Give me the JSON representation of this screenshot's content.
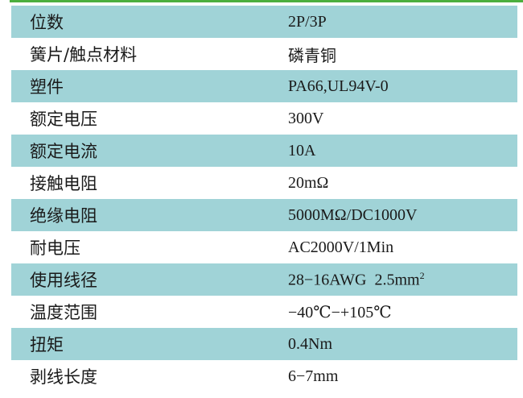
{
  "colors": {
    "accent_line": "#4caf3e",
    "row_shade": "#a0d3d7"
  },
  "rows": [
    {
      "label": "位数",
      "value": "2P/3P"
    },
    {
      "label": "簧片/触点材料",
      "value": "磷青铜"
    },
    {
      "label": "塑件",
      "value": "PA66,UL94V-0"
    },
    {
      "label": "额定电压",
      "value": "300V"
    },
    {
      "label": "额定电流",
      "value": "10A"
    },
    {
      "label": "接触电阻",
      "value": "20mΩ"
    },
    {
      "label": "绝缘电阻",
      "value": "5000MΩ/DC1000V"
    },
    {
      "label": "耐电压",
      "value": "AC2000V/1Min"
    },
    {
      "label": "使用线径",
      "value": "28−16AWG  2.5mm",
      "value_sup": "2"
    },
    {
      "label": "温度范围",
      "value": "−40℃−+105℃"
    },
    {
      "label": "扭矩",
      "value": "0.4Nm"
    },
    {
      "label": "剥线长度",
      "value": "6−7mm"
    }
  ]
}
